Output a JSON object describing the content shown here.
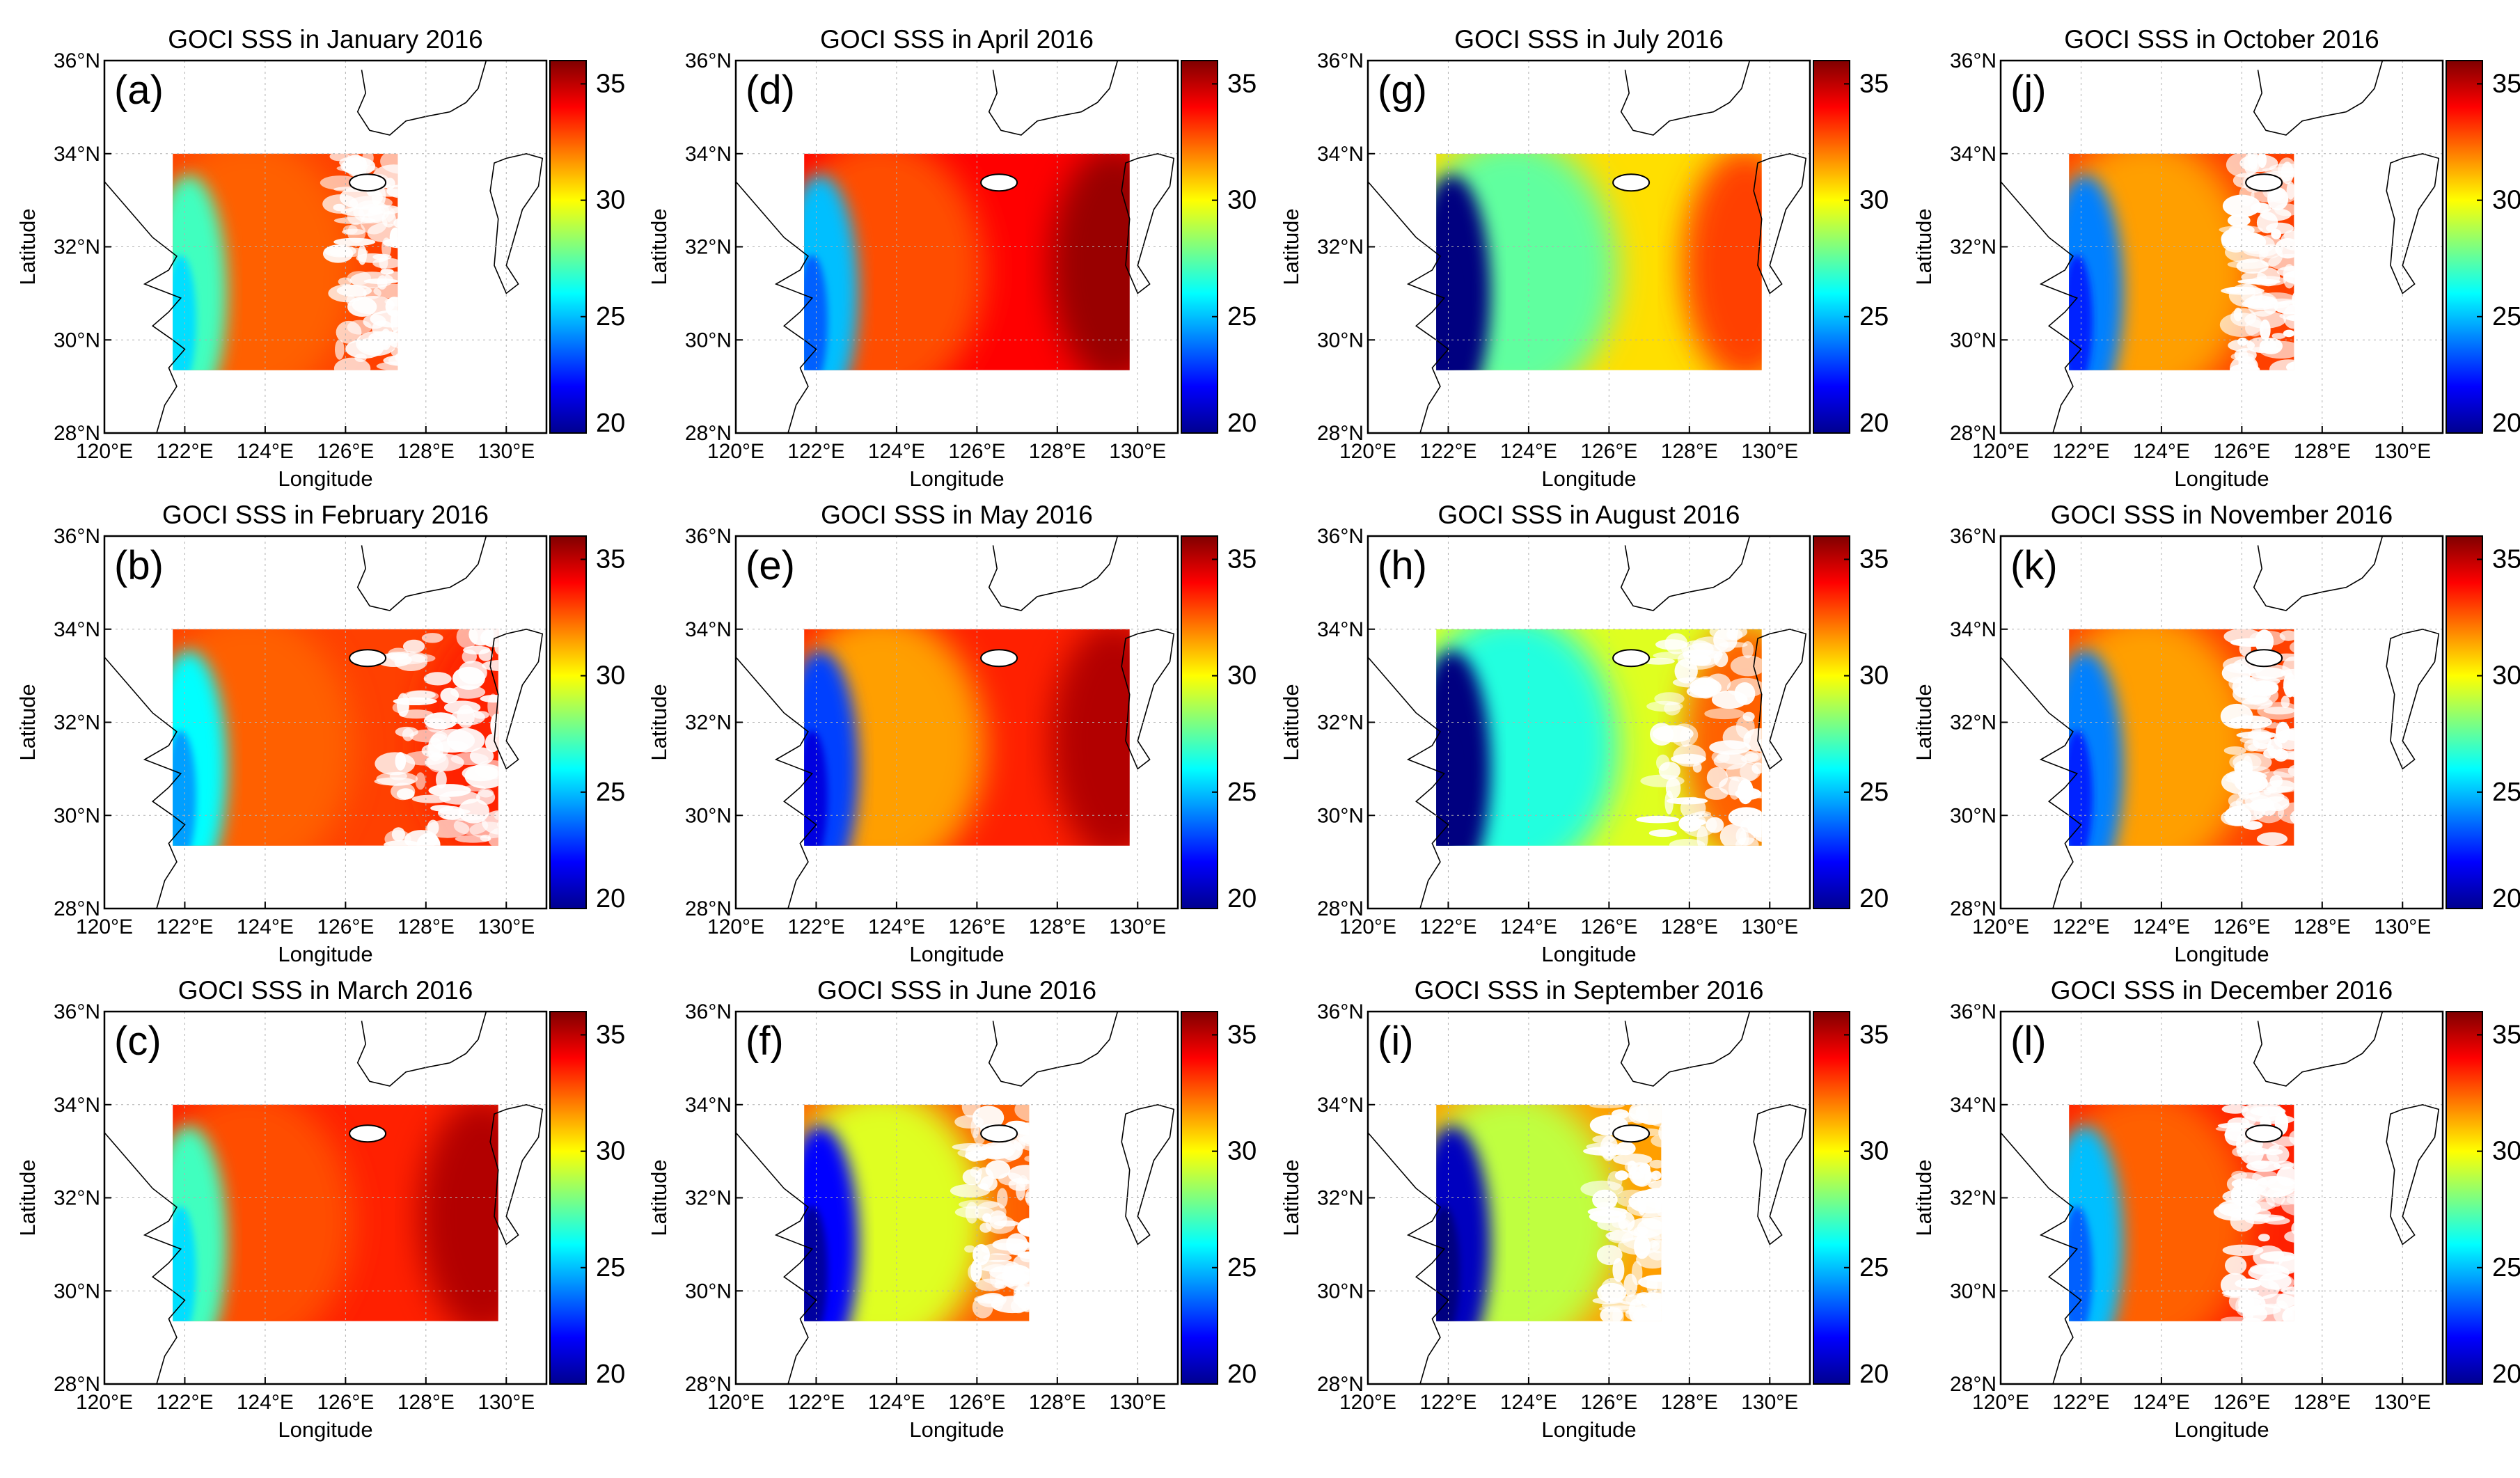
{
  "figure": {
    "variable": "SSS",
    "year": "2016",
    "x_axis_label": "Longitude",
    "y_axis_label": "Latitude",
    "longitude_ticks": [
      "120°E",
      "122°E",
      "124°E",
      "126°E",
      "128°E",
      "130°E"
    ],
    "latitude_ticks": [
      "28°N",
      "30°N",
      "32°N",
      "34°N",
      "36°N"
    ],
    "colorbar": {
      "ticks": [
        "35",
        "30",
        "25",
        "20"
      ],
      "range": [
        20,
        36
      ],
      "colormap": "jet"
    }
  },
  "panels": [
    {
      "letter": "(a)",
      "title": "GOCI SSS in January 2016",
      "month": "January",
      "mean_salinity": 32.5,
      "coverage": "western basin, east half cloudy"
    },
    {
      "letter": "(b)",
      "title": "GOCI SSS in February 2016",
      "month": "February",
      "mean_salinity": 32.5,
      "coverage": "full box, eastern edge sparse"
    },
    {
      "letter": "(c)",
      "title": "GOCI SSS in March 2016",
      "month": "March",
      "mean_salinity": 33.0,
      "coverage": "full box"
    },
    {
      "letter": "(d)",
      "title": "GOCI SSS in April 2016",
      "month": "April",
      "mean_salinity": 33.0,
      "coverage": "full box"
    },
    {
      "letter": "(e)",
      "title": "GOCI SSS in May 2016",
      "month": "May",
      "mean_salinity": 32.5,
      "coverage": "full box"
    },
    {
      "letter": "(f)",
      "title": "GOCI SSS in June 2016",
      "month": "June",
      "mean_salinity": 31.0,
      "coverage": "western basin, east half cloudy"
    },
    {
      "letter": "(g)",
      "title": "GOCI SSS in July 2016",
      "month": "July",
      "mean_salinity": 29.0,
      "coverage": "full box"
    },
    {
      "letter": "(h)",
      "title": "GOCI SSS in August 2016",
      "month": "August",
      "mean_salinity": 28.0,
      "coverage": "full box, southeast sparse"
    },
    {
      "letter": "(i)",
      "title": "GOCI SSS in September 2016",
      "month": "September",
      "mean_salinity": 30.5,
      "coverage": "western basin, east half cloudy"
    },
    {
      "letter": "(j)",
      "title": "GOCI SSS in October 2016",
      "month": "October",
      "mean_salinity": 32.5,
      "coverage": "patchy"
    },
    {
      "letter": "(k)",
      "title": "GOCI SSS in November 2016",
      "month": "November",
      "mean_salinity": 32.5,
      "coverage": "patchy"
    },
    {
      "letter": "(l)",
      "title": "GOCI SSS in December 2016",
      "month": "December",
      "mean_salinity": 33.0,
      "coverage": "patchy"
    }
  ]
}
